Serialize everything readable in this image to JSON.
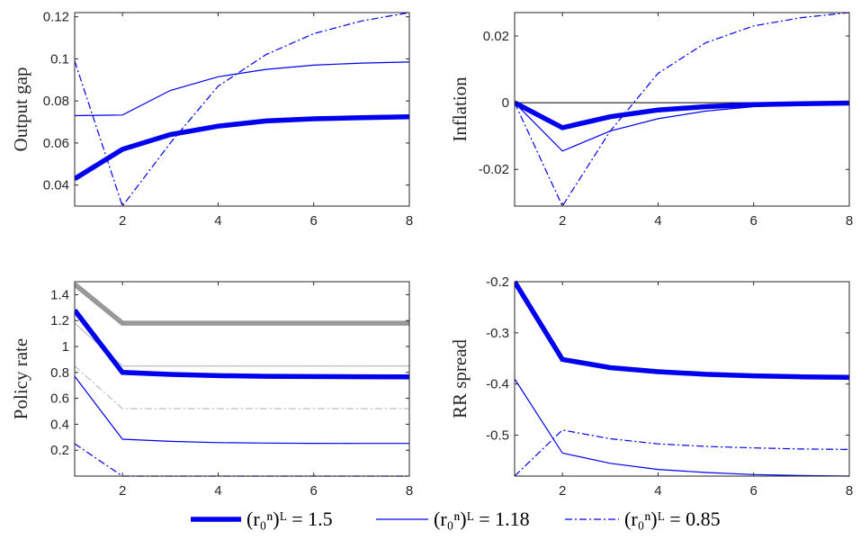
{
  "colors": {
    "blue": "#0000ee",
    "gray": "#999999",
    "lightgray": "#bdbdbd",
    "axis": "#262626"
  },
  "legend": [
    {
      "label": "(r₀ⁿ)ᴸ = 1.5",
      "style": "thick"
    },
    {
      "label": "(r₀ⁿ)ᴸ = 1.18",
      "style": "thin"
    },
    {
      "label": "(r₀ⁿ)ᴸ = 0.85",
      "style": "dashdot"
    }
  ],
  "chart_data": [
    {
      "type": "line",
      "ylabel": "Output gap",
      "xlim": [
        1,
        8
      ],
      "ylim": [
        0.03,
        0.122
      ],
      "xticks": [
        2,
        4,
        6,
        8
      ],
      "xtick_labels": [
        "2",
        "4",
        "6",
        "8"
      ],
      "yticks": [
        0.04,
        0.06,
        0.08,
        0.1,
        0.12
      ],
      "ytick_labels": [
        "0.04",
        "0.06",
        "0.08",
        "0.1",
        "0.12"
      ],
      "zero_line": false,
      "x": [
        1,
        2,
        3,
        4,
        5,
        6,
        7,
        8
      ],
      "series": [
        {
          "name": "(r₀ⁿ)ᴸ = 1.5",
          "style": "thick",
          "color": "#0000ee",
          "values": [
            0.043,
            0.057,
            0.064,
            0.068,
            0.0705,
            0.0715,
            0.072,
            0.0725
          ]
        },
        {
          "name": "(r₀ⁿ)ᴸ = 1.18",
          "style": "thin",
          "color": "#0000ee",
          "values": [
            0.073,
            0.0733,
            0.085,
            0.0915,
            0.095,
            0.097,
            0.098,
            0.0985
          ]
        },
        {
          "name": "(r₀ⁿ)ᴸ = 0.85",
          "style": "dashdot",
          "color": "#0000ee",
          "values": [
            0.099,
            0.03,
            0.06,
            0.087,
            0.102,
            0.112,
            0.118,
            0.122
          ]
        }
      ]
    },
    {
      "type": "line",
      "ylabel": "Inflation",
      "xlim": [
        1,
        8
      ],
      "ylim": [
        -0.031,
        0.027
      ],
      "xticks": [
        2,
        4,
        6,
        8
      ],
      "xtick_labels": [
        "2",
        "4",
        "6",
        "8"
      ],
      "yticks": [
        -0.02,
        0,
        0.02
      ],
      "ytick_labels": [
        "-0.02",
        "0",
        "0.02"
      ],
      "zero_line": true,
      "x": [
        1,
        2,
        3,
        4,
        5,
        6,
        7,
        8
      ],
      "series": [
        {
          "name": "(r₀ⁿ)ᴸ = 1.5",
          "style": "thick",
          "color": "#0000ee",
          "values": [
            0,
            -0.0075,
            -0.0042,
            -0.0022,
            -0.0012,
            -0.0006,
            -0.0003,
            -0.0001
          ]
        },
        {
          "name": "(r₀ⁿ)ᴸ = 1.18",
          "style": "thin",
          "color": "#0000ee",
          "values": [
            0,
            -0.0145,
            -0.0085,
            -0.0048,
            -0.0025,
            -0.0012,
            -0.0006,
            -0.0002
          ]
        },
        {
          "name": "(r₀ⁿ)ᴸ = 0.85",
          "style": "dashdot",
          "color": "#0000ee",
          "values": [
            0,
            -0.031,
            -0.0085,
            0.0088,
            0.018,
            0.023,
            0.0255,
            0.027
          ]
        }
      ]
    },
    {
      "type": "line",
      "ylabel": "Policy rate",
      "xlim": [
        1,
        8
      ],
      "ylim": [
        0,
        1.5
      ],
      "xticks": [
        2,
        4,
        6,
        8
      ],
      "xtick_labels": [
        "2",
        "4",
        "6",
        "8"
      ],
      "yticks": [
        0.2,
        0.4,
        0.6,
        0.8,
        1,
        1.2,
        1.4
      ],
      "ytick_labels": [
        "0.2",
        "0.4",
        "0.6",
        "0.8",
        "1",
        "1.2",
        "1.4"
      ],
      "zero_line": false,
      "x": [
        1,
        2,
        3,
        4,
        5,
        6,
        7,
        8
      ],
      "series": [
        {
          "name": "gray thick",
          "style": "thick",
          "color": "#999999",
          "values": [
            1.48,
            1.18,
            1.18,
            1.18,
            1.18,
            1.18,
            1.18,
            1.18
          ]
        },
        {
          "name": "gray thin",
          "style": "thin",
          "color": "#bdbdbd",
          "values": [
            1.18,
            0.85,
            0.85,
            0.85,
            0.85,
            0.85,
            0.85,
            0.85
          ]
        },
        {
          "name": "gray dashdot",
          "style": "dashdot",
          "color": "#bdbdbd",
          "values": [
            0.85,
            0.52,
            0.52,
            0.52,
            0.52,
            0.52,
            0.52,
            0.52
          ]
        },
        {
          "name": "(r₀ⁿ)ᴸ = 1.5",
          "style": "thick",
          "color": "#0000ee",
          "values": [
            1.28,
            0.8,
            0.785,
            0.775,
            0.77,
            0.768,
            0.767,
            0.766
          ]
        },
        {
          "name": "(r₀ⁿ)ᴸ = 1.18",
          "style": "thin",
          "color": "#0000ee",
          "values": [
            0.77,
            0.285,
            0.268,
            0.258,
            0.255,
            0.253,
            0.252,
            0.252
          ]
        },
        {
          "name": "(r₀ⁿ)ᴸ = 0.85",
          "style": "dashdot",
          "color": "#0000ee",
          "values": [
            0.25,
            0,
            0,
            0,
            0,
            0,
            0,
            0
          ]
        }
      ]
    },
    {
      "type": "line",
      "ylabel": "RR spread",
      "xlim": [
        1,
        8
      ],
      "ylim": [
        -0.58,
        -0.2
      ],
      "xticks": [
        2,
        4,
        6,
        8
      ],
      "xtick_labels": [
        "2",
        "4",
        "6",
        "8"
      ],
      "yticks": [
        -0.5,
        -0.4,
        -0.3,
        -0.2
      ],
      "ytick_labels": [
        "-0.5",
        "-0.4",
        "-0.3",
        "-0.2"
      ],
      "zero_line": false,
      "x": [
        1,
        2,
        3,
        4,
        5,
        6,
        7,
        8
      ],
      "series": [
        {
          "name": "(r₀ⁿ)ᴸ = 1.5",
          "style": "thick",
          "color": "#0000ee",
          "values": [
            -0.2,
            -0.352,
            -0.368,
            -0.376,
            -0.381,
            -0.384,
            -0.386,
            -0.387
          ]
        },
        {
          "name": "(r₀ⁿ)ᴸ = 1.18",
          "style": "thin",
          "color": "#0000ee",
          "values": [
            -0.39,
            -0.535,
            -0.555,
            -0.567,
            -0.573,
            -0.577,
            -0.579,
            -0.58
          ]
        },
        {
          "name": "(r₀ⁿ)ᴸ = 0.85",
          "style": "dashdot",
          "color": "#0000ee",
          "values": [
            -0.58,
            -0.49,
            -0.507,
            -0.517,
            -0.522,
            -0.525,
            -0.527,
            -0.528
          ]
        }
      ]
    }
  ]
}
